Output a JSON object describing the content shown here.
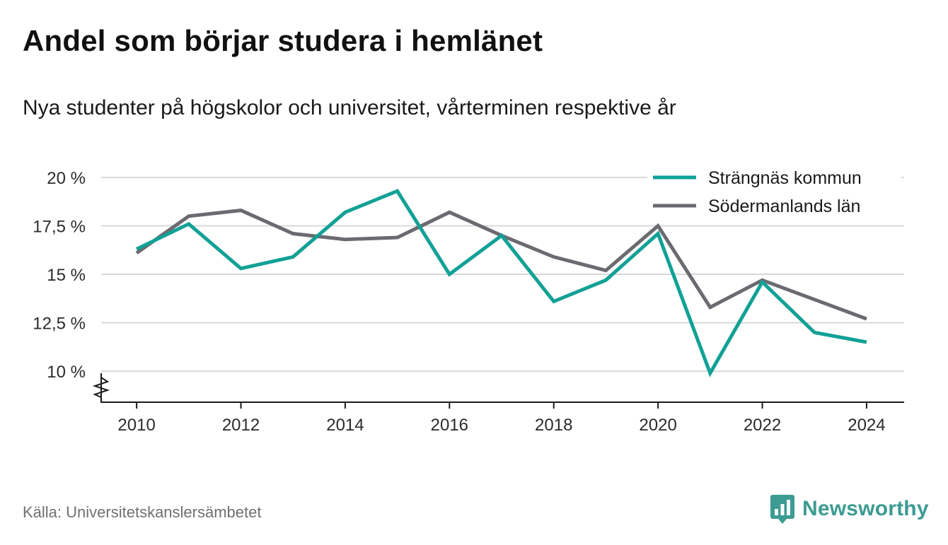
{
  "header": {
    "title": "Andel som börjar studera i hemlänet",
    "subtitle": "Nya studenter på högskolor och universitet, vårterminen respektive år"
  },
  "footer": {
    "source": "Källa: Universitetskanslersämbetet",
    "brand": "Newsworthy"
  },
  "colors": {
    "strangnas": "#11a196",
    "sodermanland": "#6b6a70",
    "brand": "#3c9b92"
  },
  "chart_data": {
    "type": "line",
    "x": [
      2010,
      2011,
      2012,
      2013,
      2014,
      2015,
      2016,
      2017,
      2018,
      2019,
      2020,
      2021,
      2022,
      2023,
      2024
    ],
    "series": [
      {
        "name": "Strängnäs kommun",
        "color": "#11a196",
        "values": [
          16.3,
          17.6,
          15.3,
          15.9,
          18.2,
          19.3,
          15.0,
          17.0,
          13.6,
          14.7,
          17.1,
          9.9,
          14.6,
          12.0,
          11.5
        ]
      },
      {
        "name": "Södermanlands län",
        "color": "#6b6a70",
        "values": [
          16.1,
          18.0,
          18.3,
          17.1,
          16.8,
          16.9,
          18.2,
          17.0,
          15.9,
          15.2,
          17.5,
          13.3,
          14.7,
          13.7,
          12.7
        ]
      }
    ],
    "y_ticks": [
      10,
      12.5,
      15,
      17.5,
      20
    ],
    "y_tick_labels": [
      "10 %",
      "12,5 %",
      "15 %",
      "17,5 %",
      "20 %"
    ],
    "x_ticks": [
      2010,
      2012,
      2014,
      2016,
      2018,
      2020,
      2022,
      2024
    ],
    "x_tick_labels": [
      "2010",
      "2012",
      "2014",
      "2016",
      "2018",
      "2020",
      "2022",
      "2024"
    ],
    "ylim": [
      8.4,
      20.4
    ],
    "xlim": [
      2009.32,
      2024.72
    ],
    "grid": true,
    "axis_break": true,
    "legend": "top-right"
  }
}
